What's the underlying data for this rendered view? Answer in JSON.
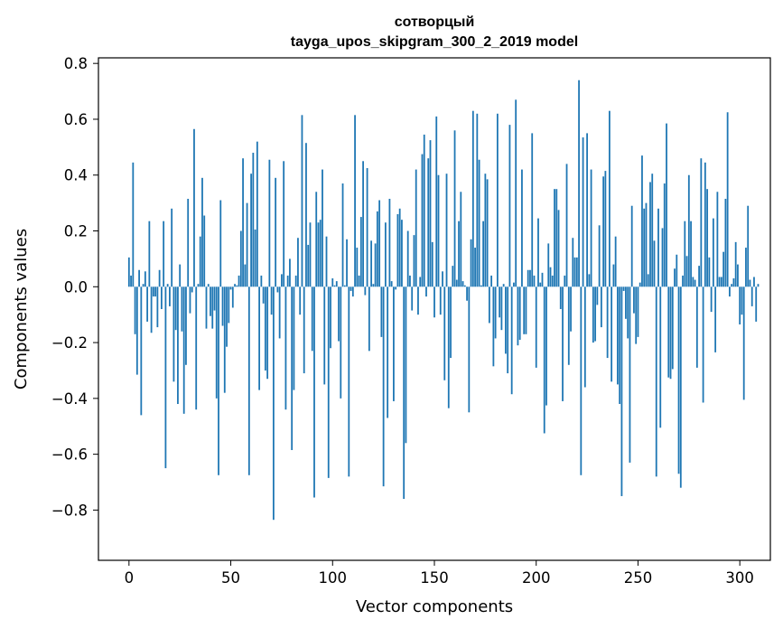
{
  "chart_data": {
    "type": "bar",
    "title_line1": "сотворцый",
    "title_line2": "tayga_upos_skipgram_300_2_2019 model",
    "xlabel": "Vector components",
    "ylabel": "Components values",
    "xlim": [
      -15,
      315
    ],
    "ylim": [
      -0.98,
      0.82
    ],
    "x_ticks": [
      0,
      50,
      100,
      150,
      200,
      250,
      300
    ],
    "y_ticks": [
      -0.8,
      -0.6,
      -0.4,
      -0.2,
      0.0,
      0.2,
      0.4,
      0.6,
      0.8
    ],
    "x_tick_labels": [
      "0",
      "50",
      "100",
      "150",
      "200",
      "250",
      "300"
    ],
    "y_tick_labels": [
      "−0.8",
      "−0.6",
      "−0.4",
      "−0.2",
      "0.0",
      "0.2",
      "0.4",
      "0.6",
      "0.8"
    ],
    "bar_color": "#1f77b4",
    "values": [
      0.105,
      0.04,
      0.445,
      -0.17,
      -0.315,
      0.06,
      -0.46,
      0.01,
      0.055,
      -0.125,
      0.235,
      -0.165,
      -0.035,
      -0.035,
      -0.145,
      0.06,
      -0.08,
      0.235,
      -0.65,
      0.01,
      -0.07,
      0.28,
      -0.34,
      -0.155,
      -0.42,
      0.08,
      -0.16,
      -0.455,
      -0.28,
      0.315,
      -0.095,
      -0.02,
      0.565,
      -0.44,
      0.01,
      0.18,
      0.39,
      0.255,
      -0.15,
      0.01,
      -0.105,
      -0.15,
      -0.085,
      -0.4,
      -0.675,
      0.31,
      -0.14,
      -0.38,
      -0.215,
      -0.13,
      -0.01,
      -0.075,
      0.01,
      0.005,
      0.04,
      0.2,
      0.46,
      0.08,
      0.3,
      -0.675,
      0.405,
      0.48,
      0.205,
      0.52,
      -0.37,
      0.04,
      -0.06,
      -0.3,
      -0.33,
      0.455,
      -0.1,
      -0.835,
      0.39,
      -0.02,
      -0.185,
      0.045,
      0.45,
      -0.44,
      0.04,
      0.1,
      -0.585,
      -0.37,
      0.04,
      0.175,
      -0.1,
      0.615,
      -0.31,
      0.515,
      0.15,
      0.23,
      -0.23,
      -0.755,
      0.34,
      0.23,
      0.24,
      0.42,
      -0.35,
      0.18,
      -0.685,
      -0.22,
      0.03,
      0.005,
      0.02,
      -0.195,
      -0.4,
      0.37,
      0.005,
      0.17,
      -0.68,
      -0.015,
      -0.035,
      0.615,
      0.14,
      0.04,
      0.25,
      0.45,
      -0.03,
      0.425,
      -0.23,
      0.165,
      0.01,
      0.155,
      0.27,
      0.31,
      -0.18,
      -0.715,
      0.23,
      -0.47,
      0.315,
      0.02,
      -0.41,
      -0.01,
      0.26,
      0.28,
      0.24,
      -0.76,
      -0.56,
      0.2,
      0.04,
      -0.085,
      0.185,
      0.42,
      -0.1,
      0.035,
      0.475,
      0.545,
      -0.035,
      0.46,
      0.525,
      0.16,
      -0.11,
      0.61,
      0.4,
      -0.1,
      0.055,
      -0.335,
      0.405,
      -0.435,
      -0.255,
      0.075,
      0.56,
      0.025,
      0.235,
      0.34,
      0.02,
      0.005,
      -0.05,
      -0.45,
      0.17,
      0.63,
      0.14,
      0.62,
      0.455,
      0.005,
      0.235,
      0.405,
      0.385,
      -0.13,
      0.04,
      -0.285,
      -0.185,
      0.62,
      -0.11,
      -0.155,
      0.01,
      -0.24,
      -0.31,
      0.58,
      -0.385,
      0.015,
      0.67,
      -0.21,
      -0.19,
      0.42,
      -0.17,
      -0.17,
      0.06,
      0.06,
      0.55,
      0.04,
      -0.29,
      0.245,
      0.015,
      0.05,
      -0.525,
      -0.425,
      0.155,
      0.07,
      0.04,
      0.35,
      0.35,
      0.275,
      -0.08,
      -0.41,
      0.04,
      0.44,
      -0.28,
      -0.16,
      0.175,
      0.105,
      0.105,
      0.74,
      -0.675,
      0.535,
      -0.36,
      0.55,
      0.045,
      0.42,
      -0.2,
      -0.195,
      -0.065,
      0.22,
      -0.145,
      0.395,
      0.415,
      -0.255,
      0.63,
      -0.34,
      0.08,
      0.18,
      -0.35,
      -0.42,
      -0.75,
      -0.015,
      -0.115,
      -0.185,
      -0.63,
      0.29,
      -0.095,
      -0.205,
      -0.18,
      0.015,
      0.47,
      0.28,
      0.3,
      0.045,
      0.375,
      0.405,
      0.165,
      -0.68,
      0.28,
      -0.505,
      0.21,
      0.37,
      0.585,
      -0.325,
      -0.33,
      -0.295,
      0.065,
      0.115,
      -0.67,
      -0.72,
      0.04,
      0.235,
      0.11,
      0.4,
      0.235,
      0.035,
      0.025,
      -0.29,
      0.075,
      0.46,
      -0.415,
      0.445,
      0.35,
      0.105,
      -0.09,
      0.245,
      -0.235,
      0.34,
      0.035,
      0.035,
      0.125,
      0.315,
      0.625,
      -0.035,
      0.01,
      0.03,
      0.16,
      0.08,
      -0.135,
      -0.1,
      -0.405,
      0.14,
      0.29,
      0.025,
      -0.07,
      0.035,
      -0.125,
      0.01
    ]
  }
}
